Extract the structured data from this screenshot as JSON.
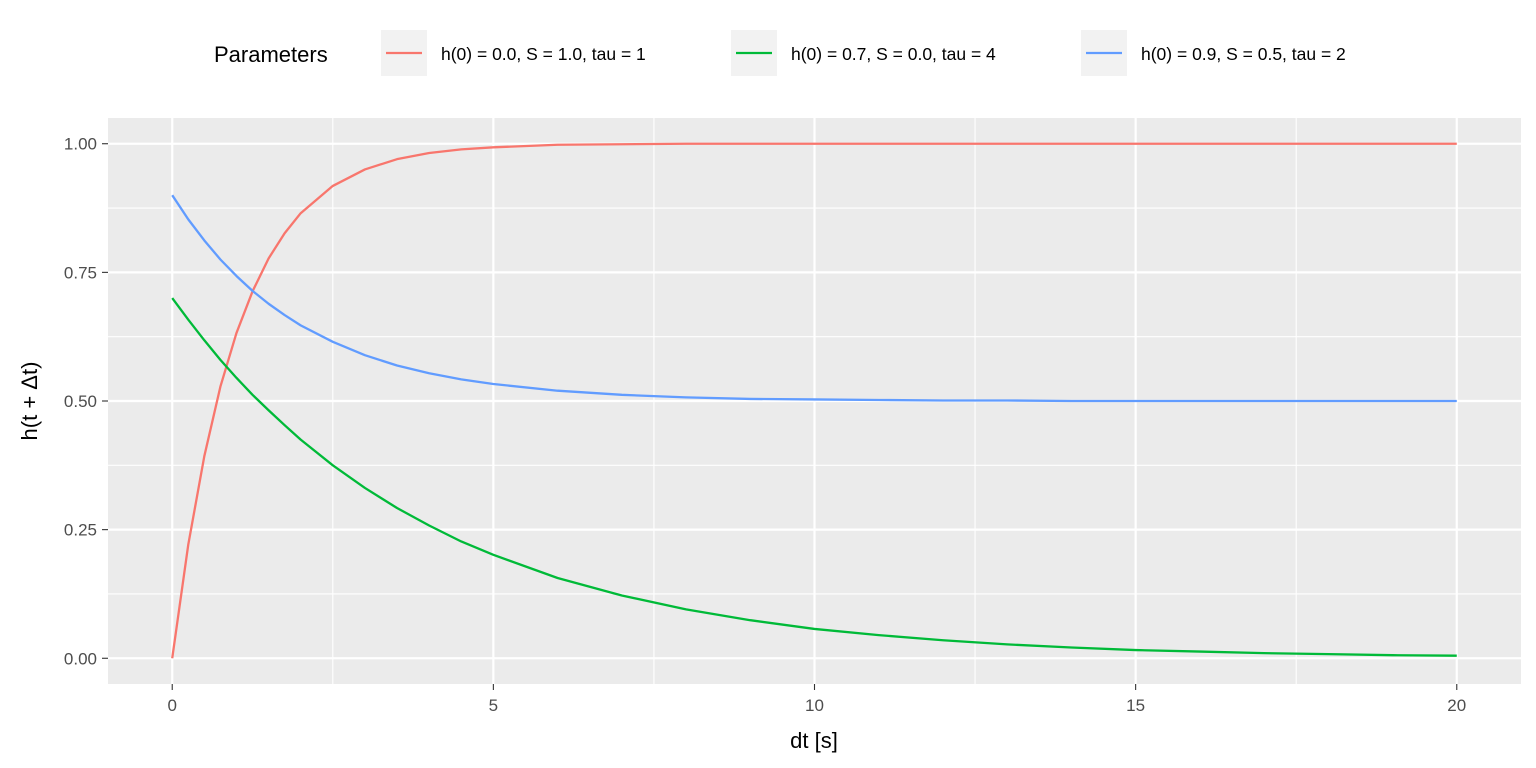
{
  "chart_data": {
    "type": "line",
    "xlabel": "dt [s]",
    "ylabel": "h(t + Δt)",
    "xlim": [
      -1,
      21
    ],
    "ylim": [
      -0.05,
      1.05
    ],
    "x_ticks": [
      0,
      5,
      10,
      15,
      20
    ],
    "x_tick_labels": [
      "0",
      "5",
      "10",
      "15",
      "20"
    ],
    "x_minor_ticks": [
      2.5,
      7.5,
      12.5,
      17.5
    ],
    "y_ticks": [
      0,
      0.25,
      0.5,
      0.75,
      1.0
    ],
    "y_tick_labels": [
      "0.00",
      "0.25",
      "0.50",
      "0.75",
      "1.00"
    ],
    "y_minor_ticks": [
      0.125,
      0.375,
      0.625,
      0.875
    ],
    "grid": true,
    "background": "#ebebeb",
    "legend": {
      "title": "Parameters",
      "position": "top"
    },
    "x": [
      0,
      0.25,
      0.5,
      0.75,
      1,
      1.25,
      1.5,
      1.75,
      2,
      2.5,
      3,
      3.5,
      4,
      4.5,
      5,
      6,
      7,
      8,
      9,
      10,
      11,
      12,
      13,
      14,
      15,
      16,
      17,
      18,
      19,
      20
    ],
    "series": [
      {
        "name": "h(0) = 0.0, S = 1.0, tau = 1",
        "color": "#f8766d",
        "values": [
          0.0,
          0.221,
          0.393,
          0.528,
          0.632,
          0.713,
          0.777,
          0.826,
          0.865,
          0.918,
          0.95,
          0.97,
          0.982,
          0.989,
          0.993,
          0.998,
          0.999,
          1.0,
          1.0,
          1.0,
          1.0,
          1.0,
          1.0,
          1.0,
          1.0,
          1.0,
          1.0,
          1.0,
          1.0,
          1.0
        ]
      },
      {
        "name": "h(0) = 0.7, S = 0.0, tau = 4",
        "color": "#00ba38",
        "values": [
          0.7,
          0.658,
          0.618,
          0.58,
          0.545,
          0.512,
          0.482,
          0.453,
          0.425,
          0.375,
          0.331,
          0.292,
          0.258,
          0.227,
          0.201,
          0.156,
          0.122,
          0.095,
          0.074,
          0.057,
          0.045,
          0.035,
          0.027,
          0.021,
          0.016,
          0.013,
          0.01,
          0.008,
          0.006,
          0.005
        ]
      },
      {
        "name": "h(0) = 0.9, S = 0.5, tau = 2",
        "color": "#619cff",
        "values": [
          0.9,
          0.853,
          0.812,
          0.775,
          0.743,
          0.714,
          0.689,
          0.667,
          0.647,
          0.615,
          0.589,
          0.569,
          0.554,
          0.542,
          0.533,
          0.52,
          0.512,
          0.507,
          0.504,
          0.503,
          0.502,
          0.501,
          0.501,
          0.5,
          0.5,
          0.5,
          0.5,
          0.5,
          0.5,
          0.5
        ]
      }
    ]
  }
}
